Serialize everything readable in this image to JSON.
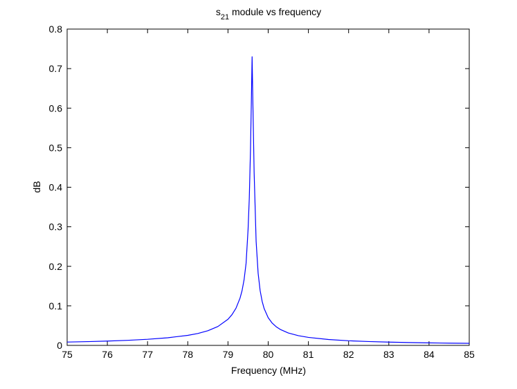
{
  "chart_data": {
    "type": "line",
    "title": {
      "main": "s",
      "subscript": "21",
      "rest": " module vs frequency"
    },
    "xlabel": "Frequency (MHz)",
    "ylabel": "dB",
    "xlim": [
      75,
      85
    ],
    "ylim": [
      0,
      0.8
    ],
    "xticks": [
      "75",
      "76",
      "77",
      "78",
      "79",
      "80",
      "81",
      "82",
      "83",
      "84",
      "85"
    ],
    "yticks": [
      "0",
      "0.1",
      "0.2",
      "0.3",
      "0.4",
      "0.5",
      "0.6",
      "0.7",
      "0.8"
    ],
    "grid": false,
    "series": [
      {
        "color": "#0000ff",
        "x": [
          75.0,
          75.5,
          76.0,
          76.5,
          77.0,
          77.5,
          78.0,
          78.25,
          78.5,
          78.75,
          79.0,
          79.1,
          79.2,
          79.3,
          79.35,
          79.4,
          79.45,
          79.5,
          79.53,
          79.56,
          79.58,
          79.6,
          79.62,
          79.65,
          79.7,
          79.75,
          79.8,
          79.85,
          79.9,
          80.0,
          80.1,
          80.2,
          80.3,
          80.5,
          80.75,
          81.0,
          81.5,
          82.0,
          82.5,
          83.0,
          83.5,
          84.0,
          84.5,
          85.0
        ],
        "y": [
          0.0084,
          0.0095,
          0.0109,
          0.0128,
          0.0154,
          0.0193,
          0.0254,
          0.0301,
          0.0371,
          0.0478,
          0.0661,
          0.0778,
          0.0942,
          0.1196,
          0.1384,
          0.1658,
          0.2075,
          0.2938,
          0.3722,
          0.4958,
          0.6088,
          0.73,
          0.6088,
          0.4382,
          0.2631,
          0.1824,
          0.1384,
          0.1113,
          0.0929,
          0.07,
          0.0563,
          0.0471,
          0.0404,
          0.0314,
          0.0246,
          0.0202,
          0.0149,
          0.0117,
          0.0097,
          0.0083,
          0.0072,
          0.0064,
          0.0057,
          0.0052
        ]
      }
    ]
  }
}
